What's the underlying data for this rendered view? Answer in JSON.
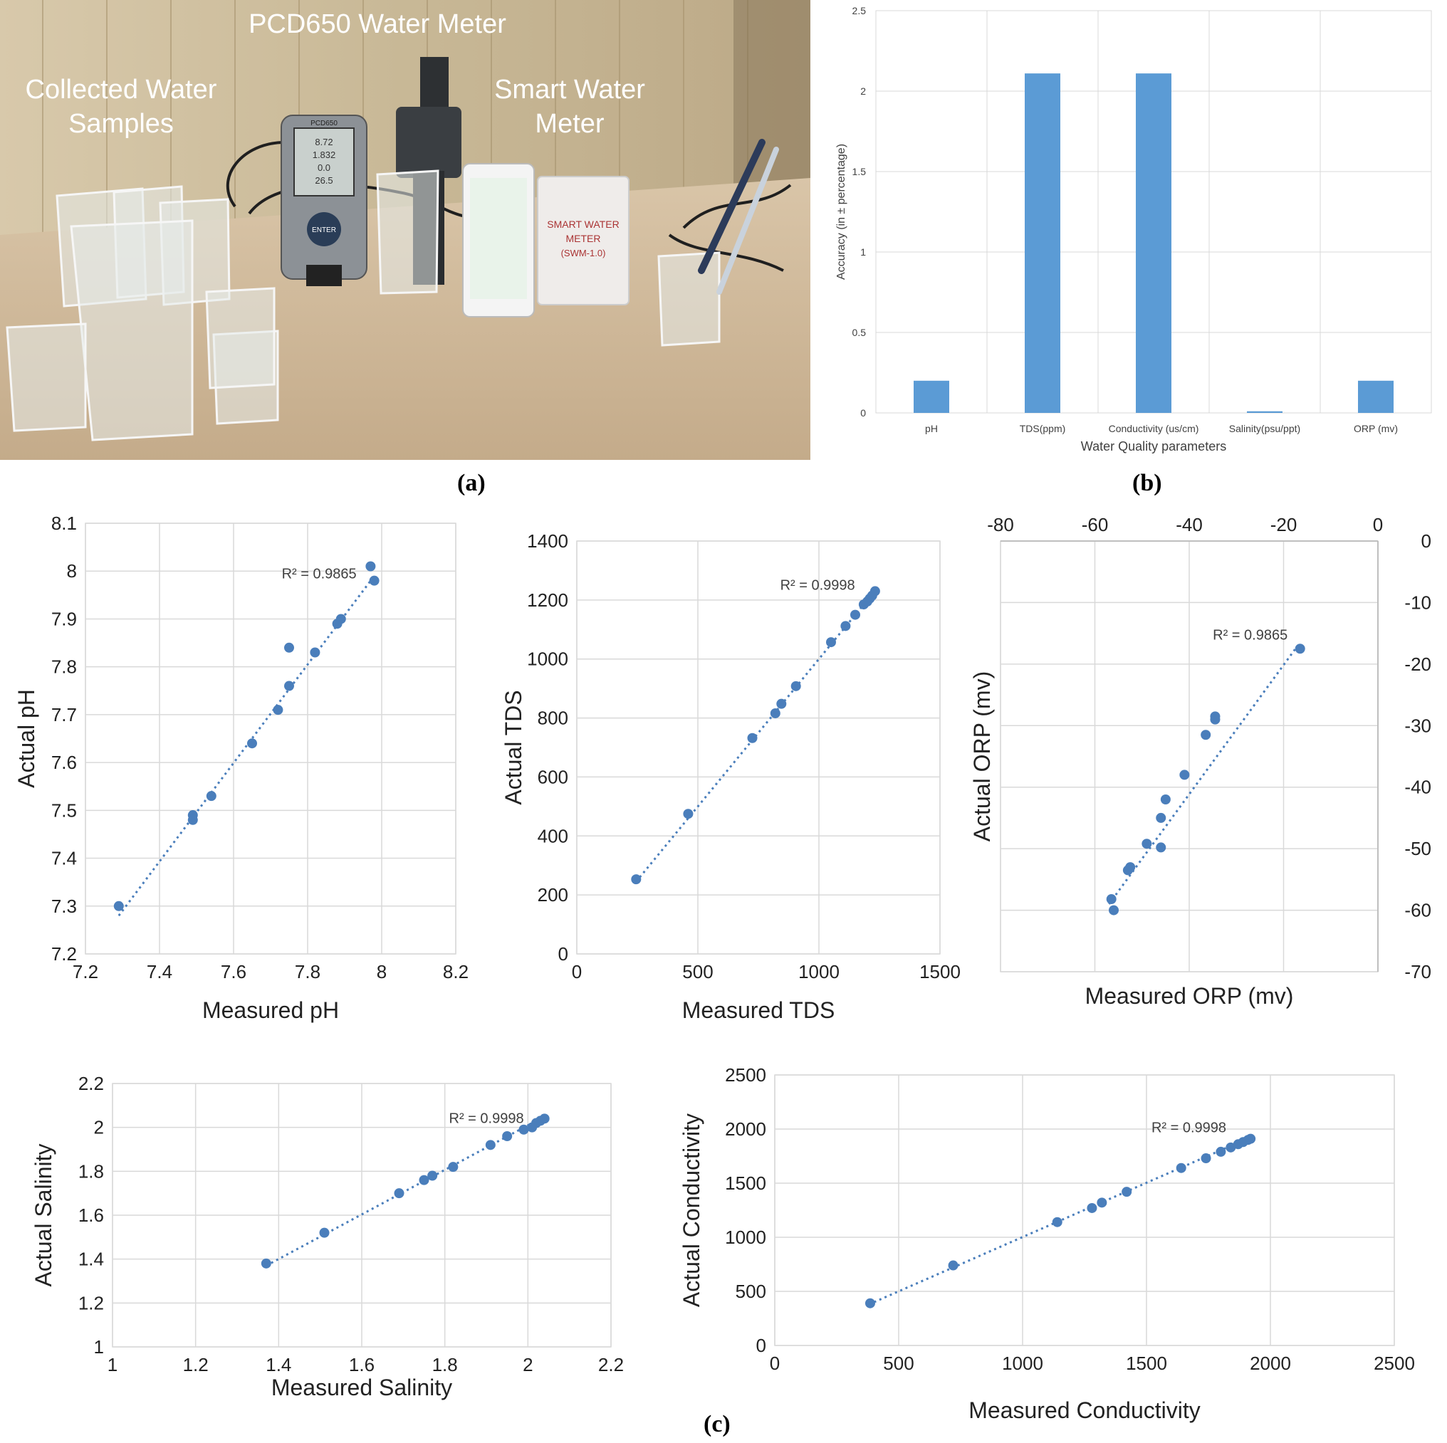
{
  "photo": {
    "labels": {
      "pcd650": "PCD650 Water Meter",
      "collected_line1": "Collected Water",
      "collected_line2": "Samples",
      "smart_line1": "Smart Water",
      "smart_line2": "Meter"
    },
    "box_text": {
      "line1": "SMART WATER",
      "line2": "METER",
      "line3": "(SWM-1.0)"
    },
    "device_brand": "PCD650",
    "device_button": "ENTER",
    "device_readings": [
      "8.72",
      "1.832",
      "0.0",
      "26.5"
    ]
  },
  "panel_labels": {
    "a": "(a)",
    "b": "(b)",
    "c": "(c)"
  },
  "colors": {
    "series": "#5b9bd5",
    "point": "#4a7ebb",
    "grid": "#d9d9d9",
    "axis": "#bfbfbf",
    "text": "#404040"
  },
  "chart_data": [
    {
      "id": "b",
      "type": "bar",
      "title": "",
      "xlabel": "Water Quality parameters",
      "ylabel": "Accuracy (in ± percentage)",
      "categories": [
        "pH",
        "TDS(ppm)",
        "Conductivity (us/cm)",
        "Salinity(psu/ppt)",
        "ORP (mv)"
      ],
      "values": [
        0.2,
        2.11,
        2.11,
        0.01,
        0.2
      ],
      "ylim": [
        0,
        2.5
      ],
      "yticks": [
        "0",
        "0.5",
        "1",
        "1.5",
        "2",
        "2.5"
      ],
      "grid": true
    },
    {
      "id": "ph",
      "type": "scatter",
      "xlabel": "Measured pH",
      "ylabel": "Actual pH",
      "annotation": "R² = 0.9865",
      "xlim": [
        7.2,
        8.2
      ],
      "ylim": [
        7.2,
        8.1
      ],
      "xticks": [
        "7.2",
        "7.4",
        "7.6",
        "7.8",
        "8",
        "8.2"
      ],
      "yticks": [
        "7.2",
        "7.3",
        "7.4",
        "7.5",
        "7.6",
        "7.7",
        "7.8",
        "7.9",
        "8",
        "8.1"
      ],
      "trendline": [
        [
          7.29,
          7.28
        ],
        [
          7.98,
          7.99
        ]
      ],
      "points": [
        [
          7.29,
          7.3
        ],
        [
          7.49,
          7.49
        ],
        [
          7.49,
          7.48
        ],
        [
          7.54,
          7.53
        ],
        [
          7.65,
          7.64
        ],
        [
          7.72,
          7.71
        ],
        [
          7.75,
          7.76
        ],
        [
          7.75,
          7.84
        ],
        [
          7.82,
          7.83
        ],
        [
          7.88,
          7.89
        ],
        [
          7.89,
          7.9
        ],
        [
          7.97,
          8.01
        ],
        [
          7.98,
          7.98
        ]
      ],
      "grid": true
    },
    {
      "id": "tds",
      "type": "scatter",
      "xlabel": "Measured TDS",
      "ylabel": "Actual TDS",
      "annotation": "R² = 0.9998",
      "xlim": [
        0,
        1500
      ],
      "ylim": [
        0,
        1400
      ],
      "xticks": [
        "0",
        "500",
        "1000",
        "1500"
      ],
      "yticks": [
        "0",
        "200",
        "400",
        "600",
        "800",
        "1000",
        "1200",
        "1400"
      ],
      "trendline": [
        [
          245,
          245
        ],
        [
          1235,
          1235
        ]
      ],
      "points": [
        [
          245,
          253
        ],
        [
          460,
          475
        ],
        [
          725,
          732
        ],
        [
          820,
          816
        ],
        [
          845,
          848
        ],
        [
          905,
          908
        ],
        [
          1050,
          1057
        ],
        [
          1110,
          1112
        ],
        [
          1150,
          1150
        ],
        [
          1185,
          1185
        ],
        [
          1200,
          1195
        ],
        [
          1210,
          1205
        ],
        [
          1220,
          1215
        ],
        [
          1232,
          1230
        ]
      ],
      "grid": true
    },
    {
      "id": "orp",
      "type": "scatter",
      "xlabel": "Measured ORP (mv)",
      "ylabel": "Actual ORP (mv)",
      "annotation": "R² = 0.9865",
      "xlim": [
        -80,
        0
      ],
      "ylim": [
        -70,
        0
      ],
      "xticks": [
        "-80",
        "-60",
        "-40",
        "-20",
        "0"
      ],
      "yticks": [
        "0",
        "-10",
        "-20",
        "-30",
        "-40",
        "-50",
        "-60",
        "-70"
      ],
      "axes_position": "x-top, y-right",
      "trendline": [
        [
          -57,
          -59
        ],
        [
          -17,
          -17
        ]
      ],
      "points": [
        [
          -56.5,
          -58.2
        ],
        [
          -56,
          -60
        ],
        [
          -53,
          -53.5
        ],
        [
          -52.5,
          -53
        ],
        [
          -49,
          -49.2
        ],
        [
          -46,
          -49.8
        ],
        [
          -46,
          -45
        ],
        [
          -45,
          -42
        ],
        [
          -41,
          -38
        ],
        [
          -36.5,
          -31.5
        ],
        [
          -34.5,
          -29
        ],
        [
          -34.5,
          -28.5
        ],
        [
          -16.5,
          -17.5
        ]
      ],
      "grid": true
    },
    {
      "id": "salinity",
      "type": "scatter",
      "xlabel": "Measured Salinity",
      "ylabel": "Actual Salinity",
      "annotation": "R² = 0.9998",
      "xlim": [
        1,
        2.2
      ],
      "ylim": [
        1,
        2.2
      ],
      "xticks": [
        "1",
        "1.2",
        "1.4",
        "1.6",
        "1.8",
        "2",
        "2.2"
      ],
      "yticks": [
        "1",
        "1.2",
        "1.4",
        "1.6",
        "1.8",
        "2",
        "2.2"
      ],
      "trendline": [
        [
          1.37,
          1.37
        ],
        [
          2.04,
          2.05
        ]
      ],
      "points": [
        [
          1.37,
          1.38
        ],
        [
          1.51,
          1.52
        ],
        [
          1.69,
          1.7
        ],
        [
          1.75,
          1.76
        ],
        [
          1.77,
          1.78
        ],
        [
          1.82,
          1.82
        ],
        [
          1.91,
          1.92
        ],
        [
          1.95,
          1.96
        ],
        [
          1.99,
          1.99
        ],
        [
          2.01,
          2.0
        ],
        [
          2.02,
          2.02
        ],
        [
          2.03,
          2.03
        ],
        [
          2.04,
          2.04
        ]
      ],
      "grid": true
    },
    {
      "id": "conductivity",
      "type": "scatter",
      "xlabel": "Measured Conductivity",
      "ylabel": "Actual Conductivity",
      "annotation": "R² = 0.9998",
      "xlim": [
        0,
        2500
      ],
      "ylim": [
        0,
        2500
      ],
      "xticks": [
        "0",
        "500",
        "1000",
        "1500",
        "2000",
        "2500"
      ],
      "yticks": [
        "0",
        "500",
        "1000",
        "1500",
        "2000",
        "2500"
      ],
      "trendline": [
        [
          380,
          380
        ],
        [
          1920,
          1925
        ]
      ],
      "points": [
        [
          385,
          390
        ],
        [
          720,
          740
        ],
        [
          1140,
          1140
        ],
        [
          1280,
          1270
        ],
        [
          1320,
          1320
        ],
        [
          1420,
          1420
        ],
        [
          1640,
          1640
        ],
        [
          1740,
          1730
        ],
        [
          1800,
          1790
        ],
        [
          1840,
          1830
        ],
        [
          1870,
          1860
        ],
        [
          1890,
          1880
        ],
        [
          1910,
          1900
        ],
        [
          1920,
          1910
        ]
      ],
      "grid": true
    }
  ]
}
